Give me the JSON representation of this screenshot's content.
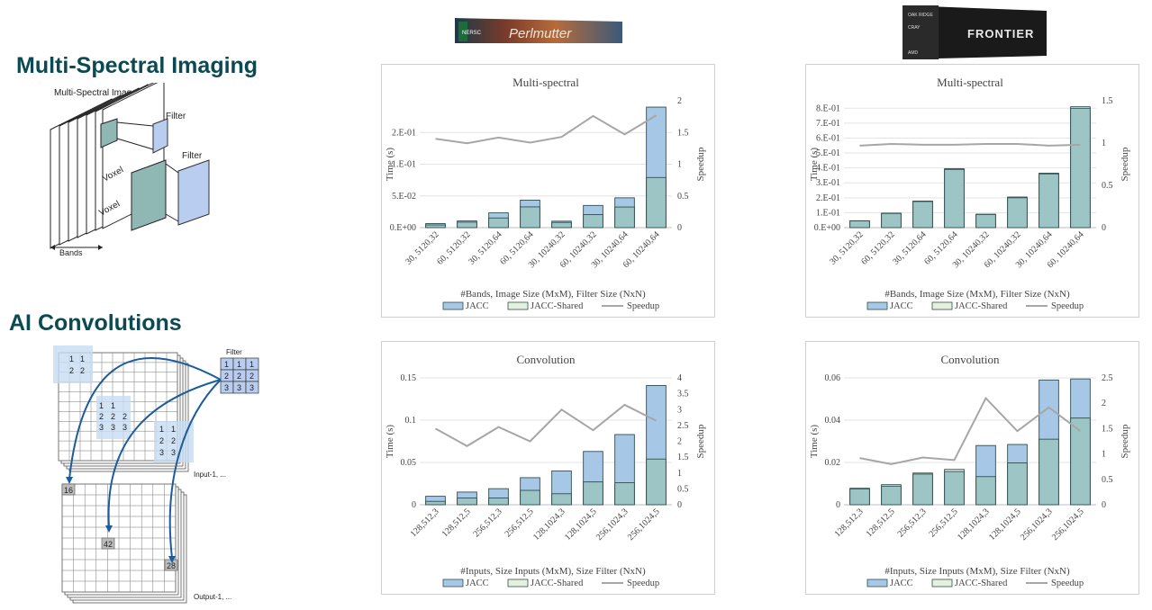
{
  "sections": {
    "multispectral_heading": "Multi-Spectral Imaging",
    "ai_heading": "AI Convolutions"
  },
  "logos": {
    "left": {
      "text": "Perlmutter",
      "badge": "NERSC"
    },
    "right": {
      "text": "FRONTIER",
      "badges": [
        "OAK RIDGE",
        "CRAY",
        "AMD"
      ]
    }
  },
  "ms_diagram": {
    "image_label": "Multi-Spectral Image",
    "filter_label_1": "Filter",
    "filter_label_2": "Filter",
    "voxel_label_1": "Voxel",
    "voxel_label_2": "Voxel",
    "bands_label": "Bands"
  },
  "conv_diagram": {
    "filter_label": "Filter",
    "filter_cells": [
      "1",
      "1",
      "1",
      "2",
      "2",
      "2",
      "3",
      "3",
      "3"
    ],
    "input_label": "Input-1, ...",
    "output_label": "Output-1, ...",
    "input_patch_1": [
      "1",
      "1",
      "2",
      "2"
    ],
    "input_patch_2": [
      "1",
      "1",
      "2",
      "2",
      "2",
      "3",
      "3",
      "3"
    ],
    "input_patch_3": [
      "1",
      "1",
      "2",
      "2",
      "3",
      "3"
    ],
    "out_values": [
      "16",
      "42",
      "28"
    ]
  },
  "colors": {
    "jacc": "#a7c7e7",
    "jacc_border": "#2f4f4f",
    "shared": "#9ec5c5",
    "shared_legend": "#e5f0dd",
    "speedup": "#a6a6a6",
    "heading": "#0b4a52",
    "arrow": "#1d5c9c"
  },
  "chart_data": [
    {
      "type": "bar",
      "title": "Multi-spectral",
      "xlabel": "#Bands, Image Size (MxM), Filter Size (NxN)",
      "ylabel": "Time (s)",
      "y2label": "Speedup",
      "categories": [
        "30, 5120,32",
        "60, 5120,32",
        "30, 5120,64",
        "60, 5120,64",
        "30, 10240,32",
        "60, 10240,32",
        "30, 10240,64",
        "60, 10240,64"
      ],
      "yticks": [
        "0.E+00",
        "5.E-02",
        "1.E-01",
        "2.E-01"
      ],
      "ytick_values": [
        0,
        0.05,
        0.1,
        0.15
      ],
      "ylim": [
        0,
        0.2
      ],
      "y2ticks": [
        "0",
        "0.5",
        "1",
        "1.5",
        "2"
      ],
      "y2ticks_values": [
        0,
        0.5,
        1,
        1.5,
        2
      ],
      "y2lim": [
        0,
        2
      ],
      "series": [
        {
          "name": "JACC",
          "values": [
            0.0064,
            0.0106,
            0.0233,
            0.0433,
            0.0102,
            0.035,
            0.047,
            0.19
          ]
        },
        {
          "name": "JACC-Shared",
          "values": [
            0.0042,
            0.0086,
            0.0152,
            0.0327,
            0.0082,
            0.0205,
            0.0325,
            0.079
          ]
        },
        {
          "name": "Speedup",
          "values": [
            1.4,
            1.33,
            1.42,
            1.34,
            1.43,
            1.76,
            1.47,
            1.77
          ]
        }
      ],
      "legend": "bottom"
    },
    {
      "type": "bar",
      "title": "Multi-spectral",
      "xlabel": "#Bands, Image Size (MxM), Filter Size (NxN)",
      "ylabel": "Time (s)",
      "y2label": "Speedup",
      "categories": [
        "30, 5120,32",
        "60, 5120,32",
        "30, 5120,64",
        "60, 5120,64",
        "30, 10240,32",
        "60, 10240,32",
        "30, 10240,64",
        "60, 10240,64"
      ],
      "yticks": [
        "0.E+00",
        "1.E-01",
        "2.E-01",
        "3.E-01",
        "4.E-01",
        "5.E-01",
        "6.E-01",
        "7.E-01",
        "8.E-01"
      ],
      "ytick_values": [
        0,
        0.1,
        0.2,
        0.3,
        0.4,
        0.5,
        0.6,
        0.7,
        0.8
      ],
      "ylim": [
        0,
        0.85
      ],
      "y2ticks": [
        "0",
        "0.5",
        "1",
        "1.5"
      ],
      "y2ticks_values": [
        0,
        0.5,
        1,
        1.5
      ],
      "y2lim": [
        0,
        1.5
      ],
      "series": [
        {
          "name": "JACC",
          "values": [
            0.045,
            0.095,
            0.175,
            0.39,
            0.088,
            0.2,
            0.36,
            0.8
          ]
        },
        {
          "name": "JACC-Shared",
          "values": [
            0.046,
            0.097,
            0.178,
            0.395,
            0.09,
            0.205,
            0.365,
            0.81
          ]
        },
        {
          "name": "Speedup",
          "values": [
            0.97,
            0.99,
            0.98,
            0.98,
            0.99,
            0.99,
            0.97,
            0.98
          ]
        }
      ],
      "legend": "bottom"
    },
    {
      "type": "bar",
      "title": "Convolution",
      "xlabel": "#Inputs, Size Inputs (MxM), Size Filter (NxN)",
      "ylabel": "Time (s)",
      "y2label": "Speedup",
      "categories": [
        "128,512,3",
        "128,512,5",
        "256,512,3",
        "256,512,5",
        "128,1024,3",
        "128,1024,5",
        "256,1024,3",
        "256,1024,5"
      ],
      "yticks": [
        "0",
        "0.05",
        "0.1",
        "0.15"
      ],
      "ytick_values": [
        0,
        0.05,
        0.1,
        0.15
      ],
      "ylim": [
        0,
        0.15
      ],
      "y2ticks": [
        "0",
        "0.5",
        "1",
        "1.5",
        "2",
        "2.5",
        "3",
        "3.5",
        "4"
      ],
      "y2ticks_values": [
        0,
        0.5,
        1,
        1.5,
        2,
        2.5,
        3,
        3.5,
        4
      ],
      "y2lim": [
        0,
        4
      ],
      "series": [
        {
          "name": "JACC",
          "values": [
            0.01,
            0.015,
            0.019,
            0.032,
            0.04,
            0.063,
            0.083,
            0.141
          ]
        },
        {
          "name": "JACC-Shared",
          "values": [
            0.004,
            0.008,
            0.008,
            0.017,
            0.013,
            0.027,
            0.026,
            0.054
          ]
        },
        {
          "name": "Speedup",
          "values": [
            2.4,
            1.85,
            2.45,
            2.0,
            3.0,
            2.35,
            3.15,
            2.65
          ]
        }
      ],
      "legend": "bottom"
    },
    {
      "type": "bar",
      "title": "Convolution",
      "xlabel": "#Inputs, Size Inputs (MxM), Size Filter (NxN)",
      "ylabel": "Time (s)",
      "y2label": "Speedup",
      "categories": [
        "128,512,3",
        "128,512,5",
        "256,512,3",
        "256,512,5",
        "128,1024,3",
        "128,1024,5",
        "256,1024,3",
        "256,1024,5"
      ],
      "yticks": [
        "0",
        "0.02",
        "0.04",
        "0.06"
      ],
      "ytick_values": [
        0,
        0.02,
        0.04,
        0.06
      ],
      "ylim": [
        0,
        0.06
      ],
      "y2ticks": [
        "0",
        "0.5",
        "1",
        "1.5",
        "2",
        "2.5"
      ],
      "y2ticks_values": [
        0,
        0.5,
        1,
        1.5,
        2,
        2.5
      ],
      "y2lim": [
        0,
        2.5
      ],
      "series": [
        {
          "name": "JACC",
          "values": [
            0.0075,
            0.0088,
            0.0145,
            0.0157,
            0.028,
            0.0285,
            0.059,
            0.0595
          ]
        },
        {
          "name": "JACC-Shared",
          "values": [
            0.0078,
            0.0095,
            0.015,
            0.0167,
            0.0133,
            0.0198,
            0.031,
            0.041
          ]
        },
        {
          "name": "Speedup",
          "values": [
            0.92,
            0.8,
            0.93,
            0.88,
            2.1,
            1.45,
            1.92,
            1.45
          ]
        }
      ],
      "legend": "bottom"
    }
  ]
}
